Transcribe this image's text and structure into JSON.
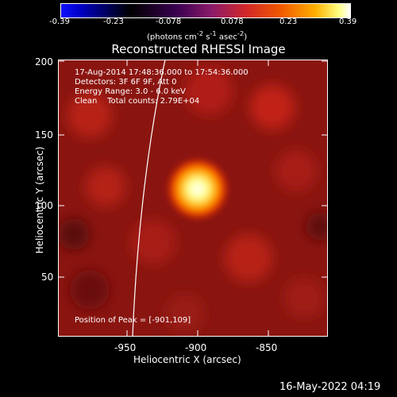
{
  "colorbar": {
    "ticks": [
      "-0.39",
      "-0.23",
      "-0.078",
      "0.078",
      "0.23",
      "0.39"
    ],
    "unit_prefix": "(photons cm",
    "unit_exp1": "-2",
    "unit_mid": " s",
    "unit_exp2": "-1",
    "unit_mid2": " asec",
    "unit_exp3": "-2",
    "unit_suffix": ")"
  },
  "title": "Reconstructed RHESSI Image",
  "annotations": {
    "time": "17-Aug-2014 17:48:36.000 to 17:54:36.000",
    "detectors": "Detectors: 3F 6F 9F, Att 0",
    "energy": "Energy Range: 3.0 - 6.0 keV",
    "clean": "Clean    Total counts: 2.79E+04",
    "peak": "Position of Peak = [-901,109]"
  },
  "axes": {
    "xlabel": "Heliocentric X (arcsec)",
    "ylabel": "Heliocentric Y (arcsec)",
    "xticks": [
      "-950",
      "-900",
      "-850"
    ],
    "yticks": [
      "200",
      "150",
      "100",
      "50"
    ]
  },
  "footer": "16-May-2022 04:19"
}
